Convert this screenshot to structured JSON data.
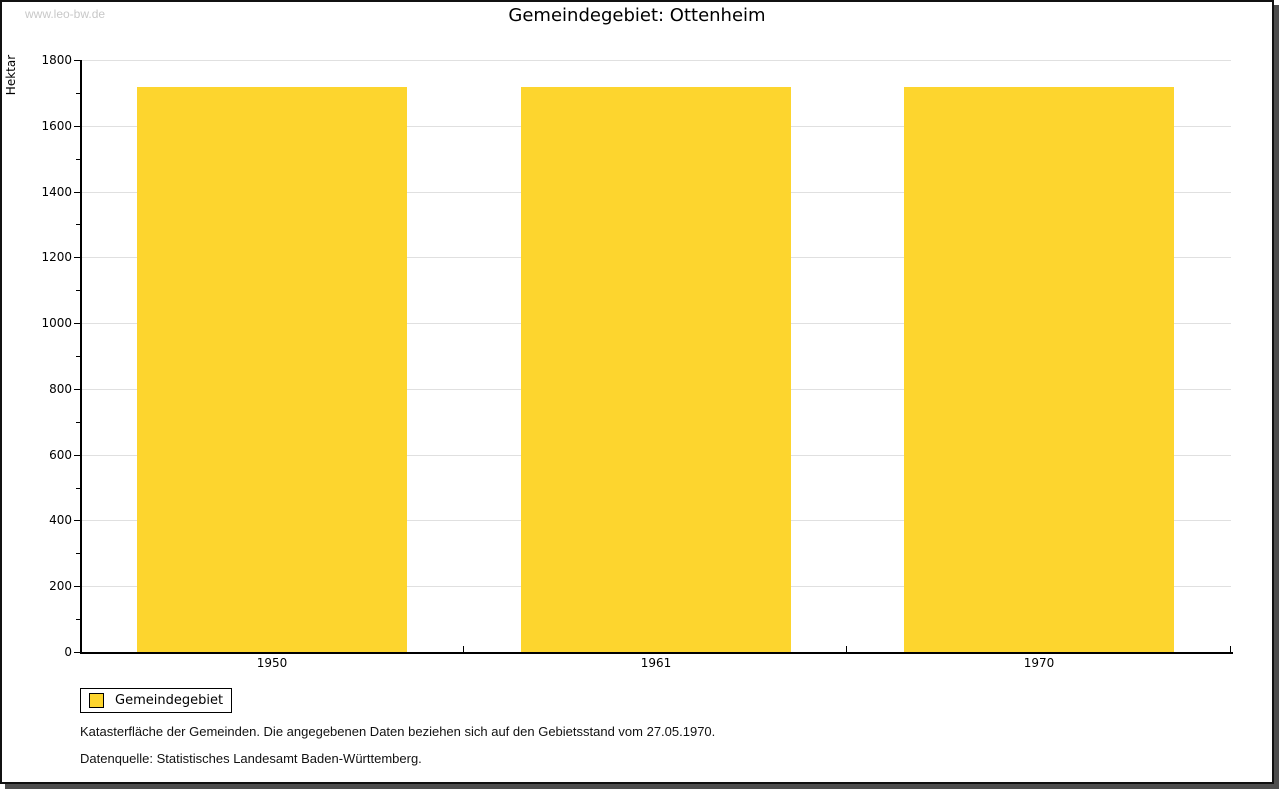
{
  "watermark": "www.leo-bw.de",
  "title": "Gemeindegebiet: Ottenheim",
  "chart_data": {
    "type": "bar",
    "title": "Gemeindegebiet: Ottenheim",
    "categories": [
      "1950",
      "1961",
      "1970"
    ],
    "series": [
      {
        "name": "Gemeindegebiet",
        "values": [
          1718,
          1718,
          1718
        ]
      }
    ],
    "xlabel": "",
    "ylabel": "Hektar",
    "ylim": [
      0,
      1800
    ],
    "ytick_step": 200,
    "yminor_tick_step": 100,
    "yticks": [
      0,
      200,
      400,
      600,
      800,
      1000,
      1200,
      1400,
      1600,
      1800
    ],
    "grid": true,
    "legend_position": "bottom-left",
    "bar_color": "#fdd52e",
    "gridline_color": "#e0e0e0"
  },
  "legend": {
    "label": "Gemeindegebiet",
    "swatch_color": "#fdd52e"
  },
  "footnotes": {
    "line1": "Katasterfläche der Gemeinden. Die angegebenen Daten beziehen sich auf den Gebietsstand vom 27.05.1970.",
    "line2": "Datenquelle: Statistisches Landesamt Baden-Württemberg."
  },
  "colors": {
    "frame_border": "#111111",
    "frame_shadow": "#4d4d4d",
    "watermark": "#c8c8c8",
    "axis": "#000000"
  }
}
